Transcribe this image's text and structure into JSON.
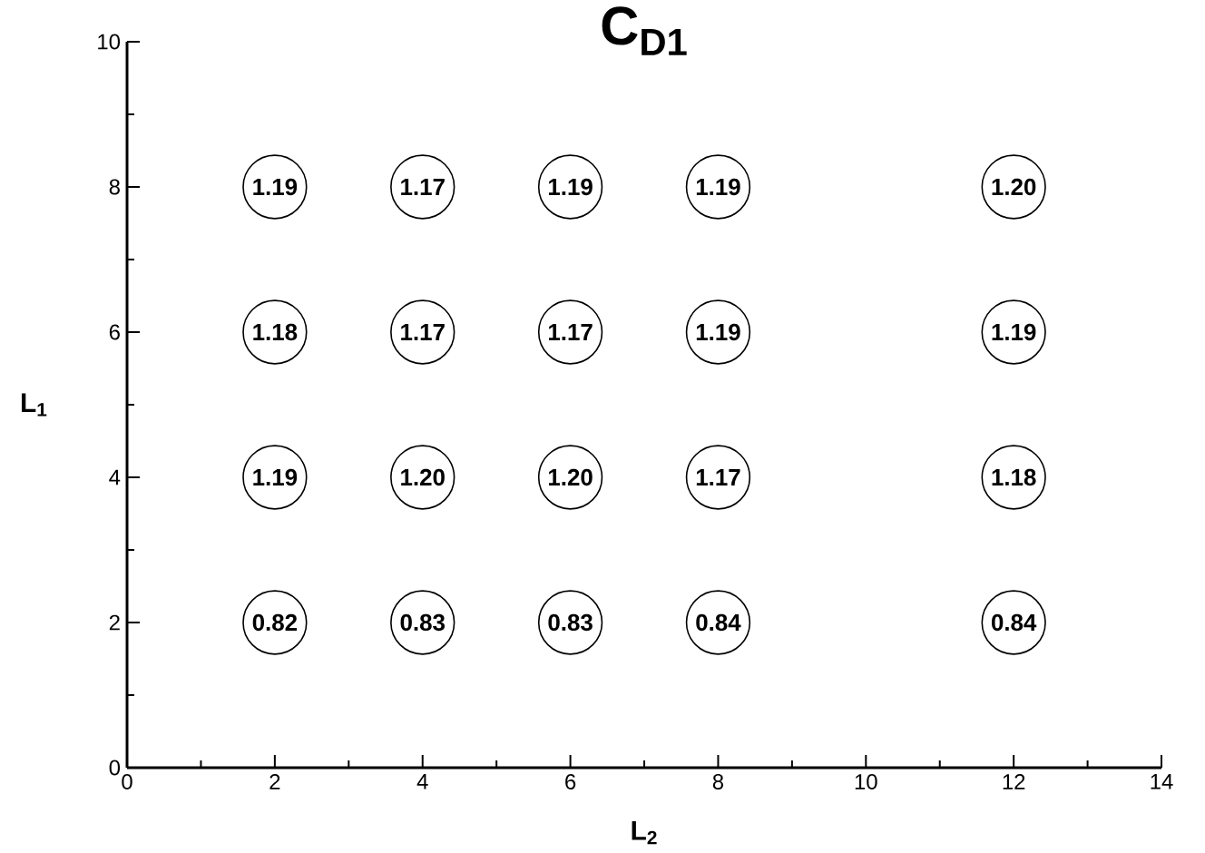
{
  "chart_data": {
    "type": "scatter",
    "title": "C$_{D1}$",
    "xlabel": "L$_{2}$",
    "ylabel": "L$_{1}$",
    "xlim": [
      0,
      14
    ],
    "ylim": [
      0,
      10
    ],
    "xticks": [
      0,
      2,
      4,
      6,
      8,
      10,
      12,
      14
    ],
    "yticks": [
      0,
      2,
      4,
      6,
      8,
      10
    ],
    "grid": false,
    "marker": "circle",
    "series": [
      {
        "color": "#000000",
        "x": [
          2,
          4,
          6,
          8,
          12,
          2,
          4,
          6,
          8,
          12,
          2,
          4,
          6,
          8,
          12,
          2,
          4,
          6,
          8,
          12
        ],
        "values": [
          8,
          8,
          8,
          8,
          8,
          6,
          6,
          6,
          6,
          6,
          4,
          4,
          4,
          4,
          4,
          2,
          2,
          2,
          2,
          2
        ]
      }
    ],
    "annotations": [
      {
        "text": "1.19",
        "x": 2,
        "y": 8
      },
      {
        "text": "1.17",
        "x": 4,
        "y": 8
      },
      {
        "text": "1.19",
        "x": 6,
        "y": 8
      },
      {
        "text": "1.19",
        "x": 8,
        "y": 8
      },
      {
        "text": "1.20",
        "x": 12,
        "y": 8
      },
      {
        "text": "1.18",
        "x": 2,
        "y": 6
      },
      {
        "text": "1.17",
        "x": 4,
        "y": 6
      },
      {
        "text": "1.17",
        "x": 6,
        "y": 6
      },
      {
        "text": "1.19",
        "x": 8,
        "y": 6
      },
      {
        "text": "1.19",
        "x": 12,
        "y": 6
      },
      {
        "text": "1.19",
        "x": 2,
        "y": 4
      },
      {
        "text": "1.20",
        "x": 4,
        "y": 4
      },
      {
        "text": "1.20",
        "x": 6,
        "y": 4
      },
      {
        "text": "1.17",
        "x": 8,
        "y": 4
      },
      {
        "text": "1.18",
        "x": 12,
        "y": 4
      },
      {
        "text": "0.82",
        "x": 2,
        "y": 2
      },
      {
        "text": "0.83",
        "x": 4,
        "y": 2
      },
      {
        "text": "0.83",
        "x": 6,
        "y": 2
      },
      {
        "text": "0.84",
        "x": 8,
        "y": 2
      },
      {
        "text": "0.84",
        "x": 12,
        "y": 2
      }
    ]
  }
}
